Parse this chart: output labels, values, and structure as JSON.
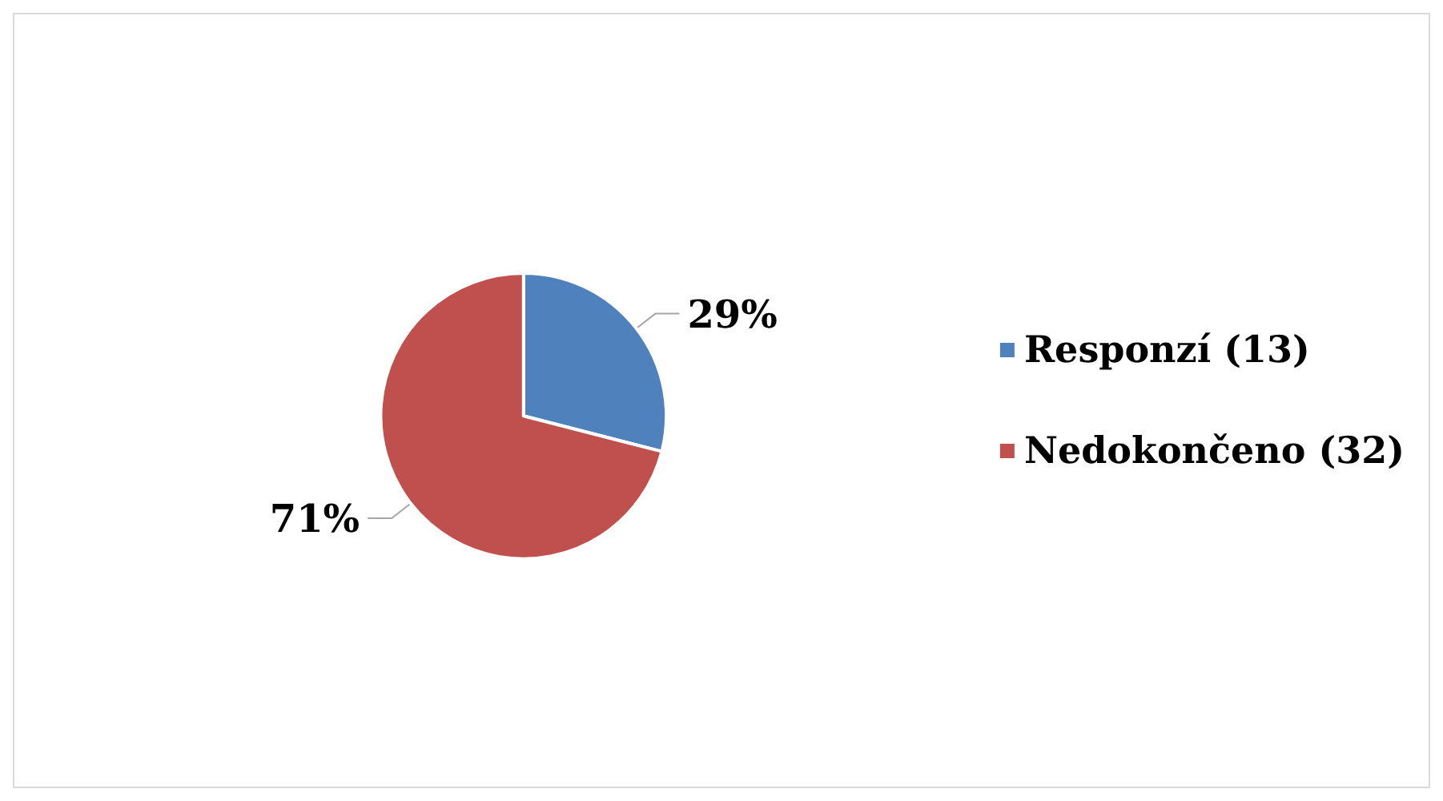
{
  "chart_data": {
    "type": "pie",
    "categories": [
      "Responzí (13)",
      "Nedokončeno (32)"
    ],
    "values": [
      29,
      71
    ],
    "colors": [
      "#4f81bd",
      "#c0504d"
    ],
    "value_labels": [
      "29%",
      "71%"
    ],
    "legend": "right"
  }
}
